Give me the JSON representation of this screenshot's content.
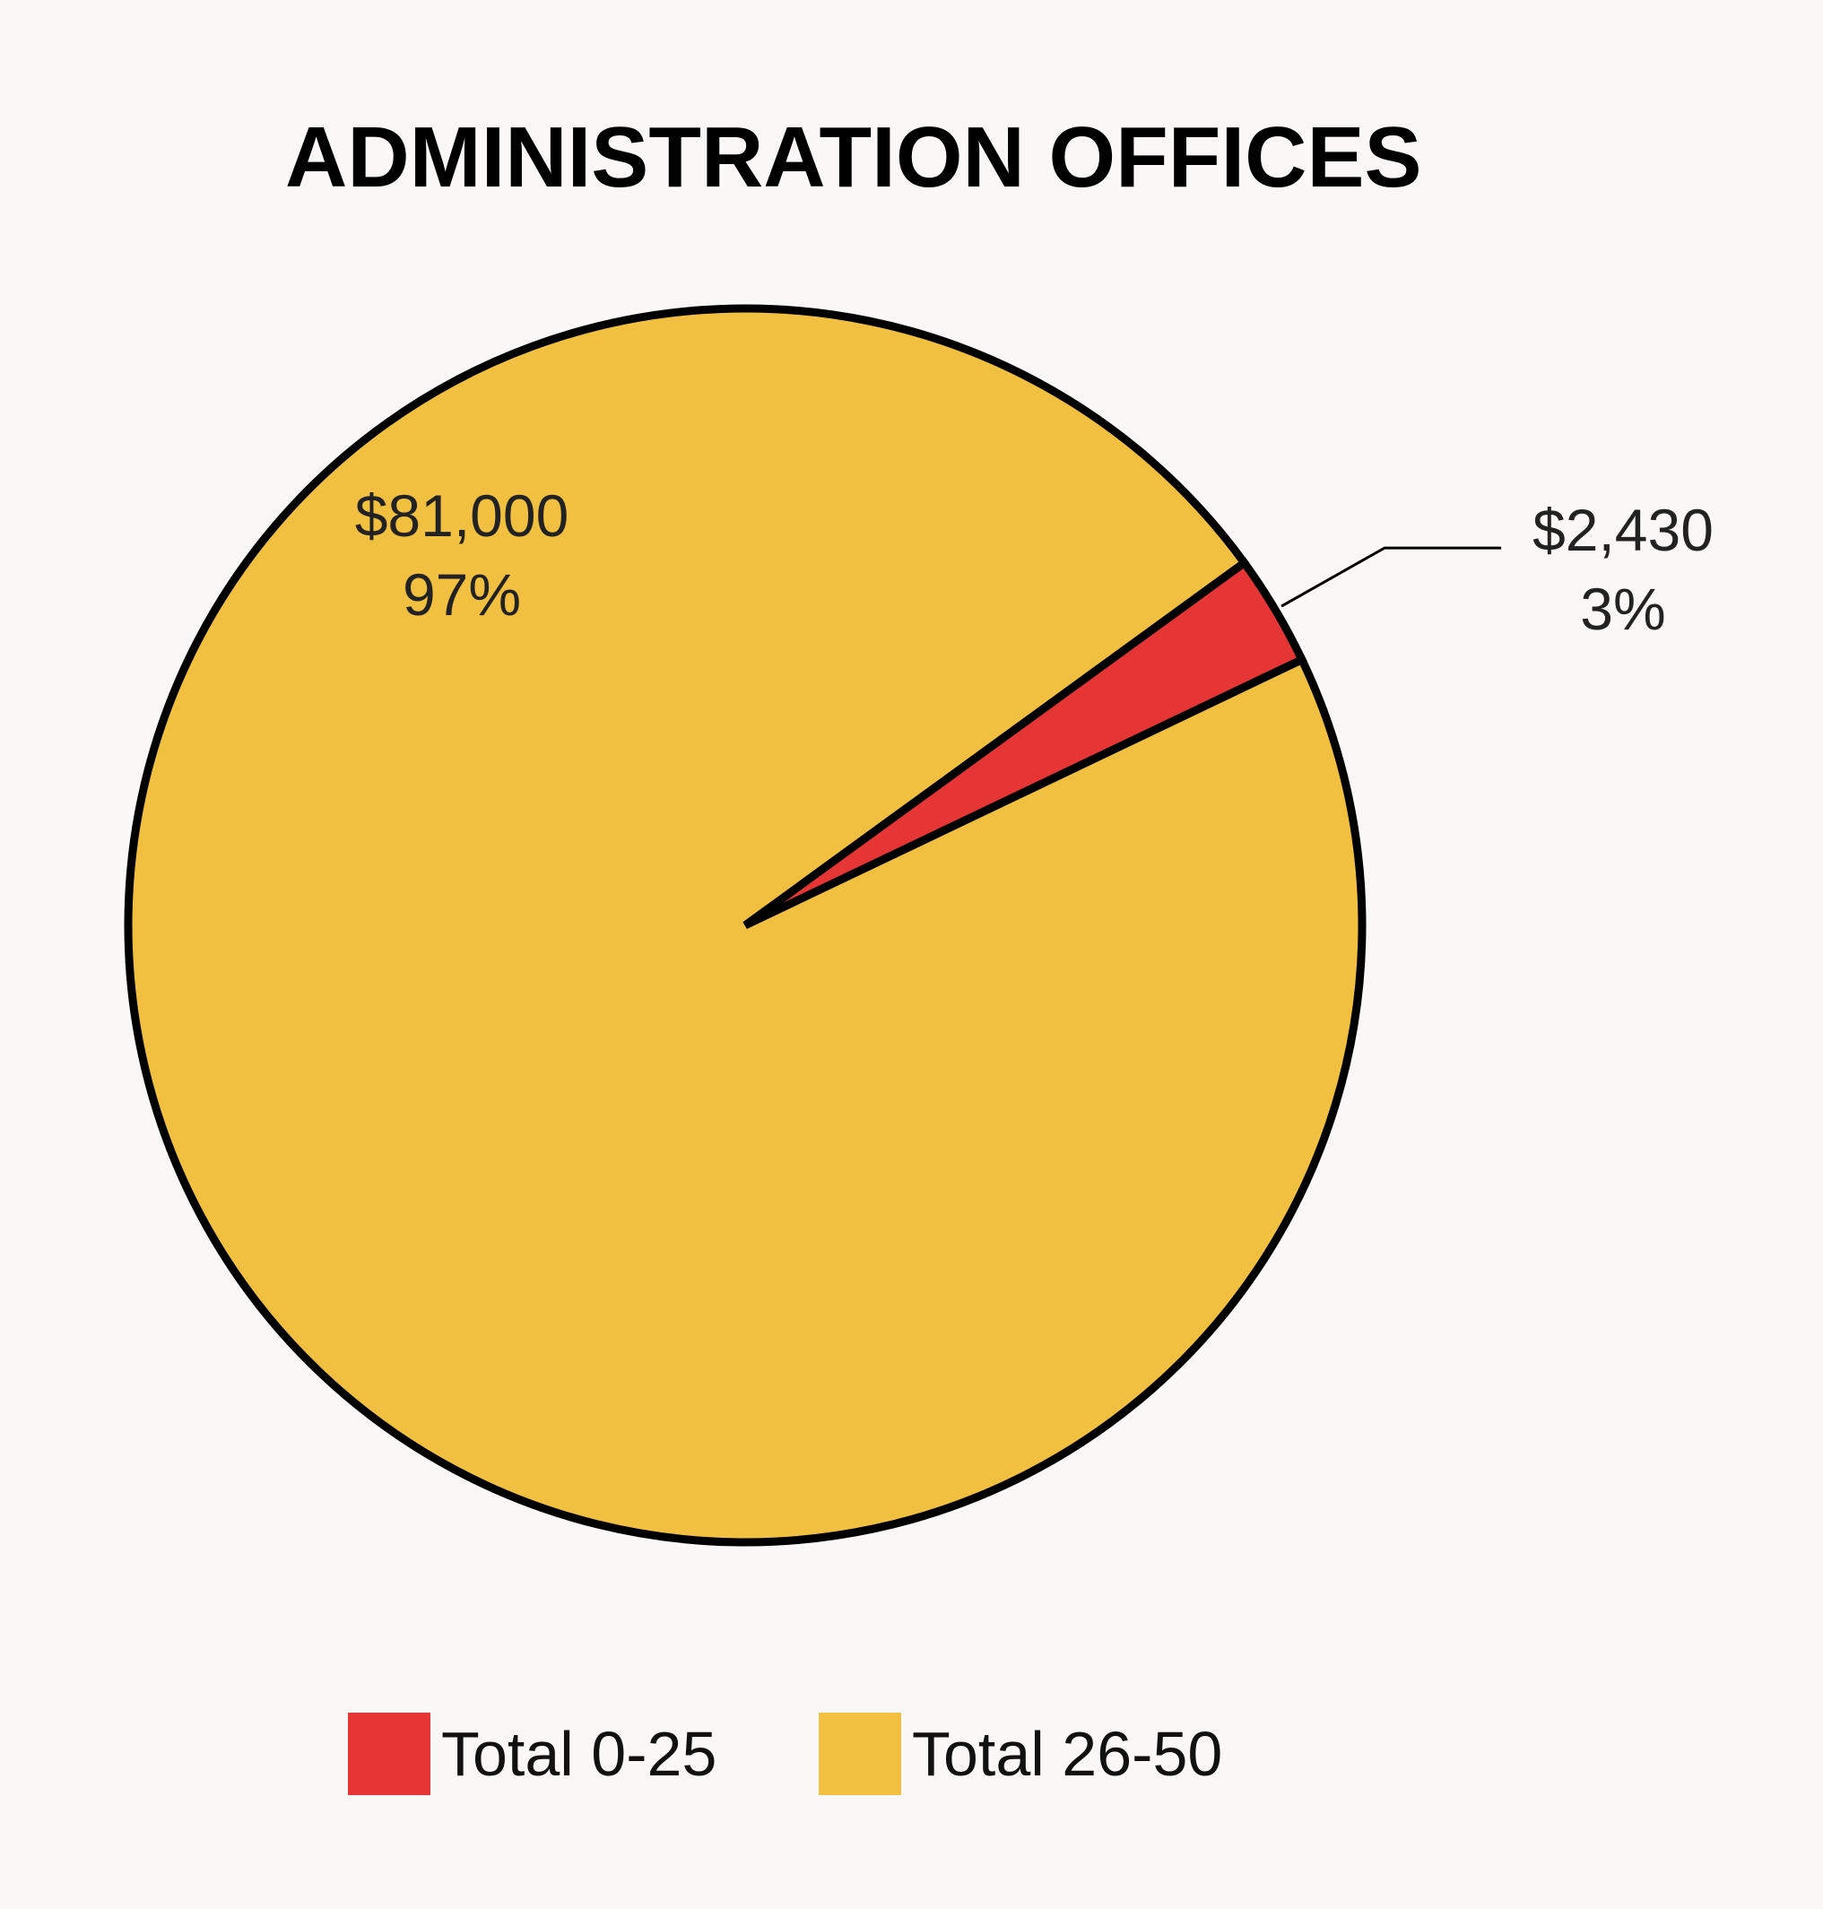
{
  "chart_data": {
    "type": "pie",
    "title": "ADMINISTRATION OFFICES",
    "slices": [
      {
        "name": "Total 0-25",
        "value": 2430,
        "value_label": "$2,430",
        "percent_label": "3%",
        "color": "#e63535"
      },
      {
        "name": "Total 26-50",
        "value": 81000,
        "value_label": "$81,000",
        "percent_label": "97%",
        "color": "#f2c040"
      }
    ],
    "legend": {
      "placement": "bottom-center",
      "items": [
        {
          "label": "Total 0-25",
          "color": "#e63535"
        },
        {
          "label": "Total 26-50",
          "color": "#f2c040"
        }
      ]
    }
  }
}
